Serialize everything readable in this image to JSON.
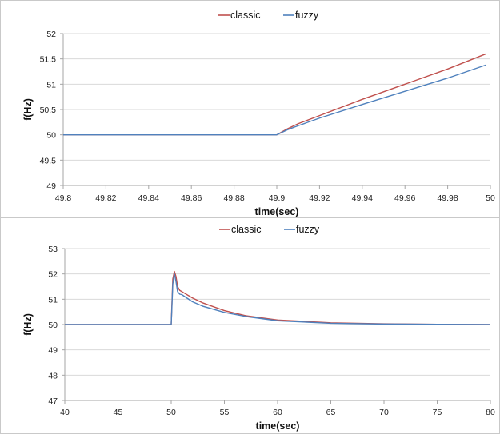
{
  "colors": {
    "classic": "#c0504d",
    "fuzzy": "#4f81bd",
    "grid": "#d9d9d9",
    "axis": "#a6a6a6"
  },
  "chart_data": [
    {
      "type": "line",
      "title": "",
      "xlabel": "time(sec)",
      "ylabel": "f(Hz)",
      "xlim": [
        49.8,
        50
      ],
      "ylim": [
        49,
        52
      ],
      "xticks": [
        49.8,
        49.82,
        49.84,
        49.86,
        49.88,
        49.9,
        49.92,
        49.94,
        49.96,
        49.98,
        50
      ],
      "xtick_labels": [
        "49.8",
        "49.82",
        "49.84",
        "49.86",
        "49.88",
        "49.9",
        "49.92",
        "49.94",
        "49.96",
        "49.98",
        "50"
      ],
      "yticks": [
        49,
        49.5,
        50,
        50.5,
        51,
        51.5,
        52
      ],
      "ytick_labels": [
        "49",
        "49.5",
        "50",
        "50.5",
        "51",
        "51.5",
        "52"
      ],
      "grid": true,
      "legend_position": "top-center",
      "series": [
        {
          "name": "classic",
          "color": "#c0504d",
          "x": [
            49.8,
            49.85,
            49.9,
            49.9,
            49.905,
            49.91,
            49.92,
            49.94,
            49.96,
            49.98,
            49.998
          ],
          "y": [
            50,
            50,
            50,
            50,
            50.12,
            50.22,
            50.38,
            50.7,
            51.0,
            51.3,
            51.6
          ]
        },
        {
          "name": "fuzzy",
          "color": "#4f81bd",
          "x": [
            49.8,
            49.85,
            49.9,
            49.9,
            49.905,
            49.91,
            49.92,
            49.94,
            49.96,
            49.98,
            49.998
          ],
          "y": [
            50,
            50,
            50,
            50,
            50.1,
            50.18,
            50.33,
            50.6,
            50.86,
            51.12,
            51.38
          ]
        }
      ]
    },
    {
      "type": "line",
      "title": "",
      "xlabel": "time(sec)",
      "ylabel": "f(Hz)",
      "xlim": [
        40,
        80
      ],
      "ylim": [
        47,
        53
      ],
      "xticks": [
        40,
        45,
        50,
        55,
        60,
        65,
        70,
        75,
        80
      ],
      "xtick_labels": [
        "40",
        "45",
        "50",
        "55",
        "60",
        "65",
        "70",
        "75",
        "80"
      ],
      "yticks": [
        47,
        48,
        49,
        50,
        51,
        52,
        53
      ],
      "ytick_labels": [
        "47",
        "48",
        "49",
        "50",
        "51",
        "52",
        "53"
      ],
      "grid": true,
      "legend_position": "top-center",
      "series": [
        {
          "name": "classic",
          "color": "#c0504d",
          "x": [
            40,
            50,
            50.05,
            50.15,
            50.3,
            50.45,
            50.6,
            50.8,
            51,
            52,
            53,
            55,
            57,
            60,
            65,
            70,
            75,
            80
          ],
          "y": [
            50,
            50,
            50.6,
            51.8,
            52.1,
            51.9,
            51.5,
            51.35,
            51.3,
            51.05,
            50.85,
            50.55,
            50.35,
            50.18,
            50.07,
            50.03,
            50.01,
            50.0
          ]
        },
        {
          "name": "fuzzy",
          "color": "#4f81bd",
          "x": [
            40,
            50,
            50.05,
            50.15,
            50.3,
            50.45,
            50.6,
            50.8,
            51,
            52,
            53,
            55,
            57,
            60,
            65,
            70,
            75,
            80
          ],
          "y": [
            50,
            50,
            50.5,
            51.6,
            52.0,
            51.7,
            51.3,
            51.2,
            51.18,
            50.9,
            50.72,
            50.48,
            50.32,
            50.15,
            50.05,
            50.02,
            50.01,
            50.0
          ]
        }
      ]
    }
  ]
}
